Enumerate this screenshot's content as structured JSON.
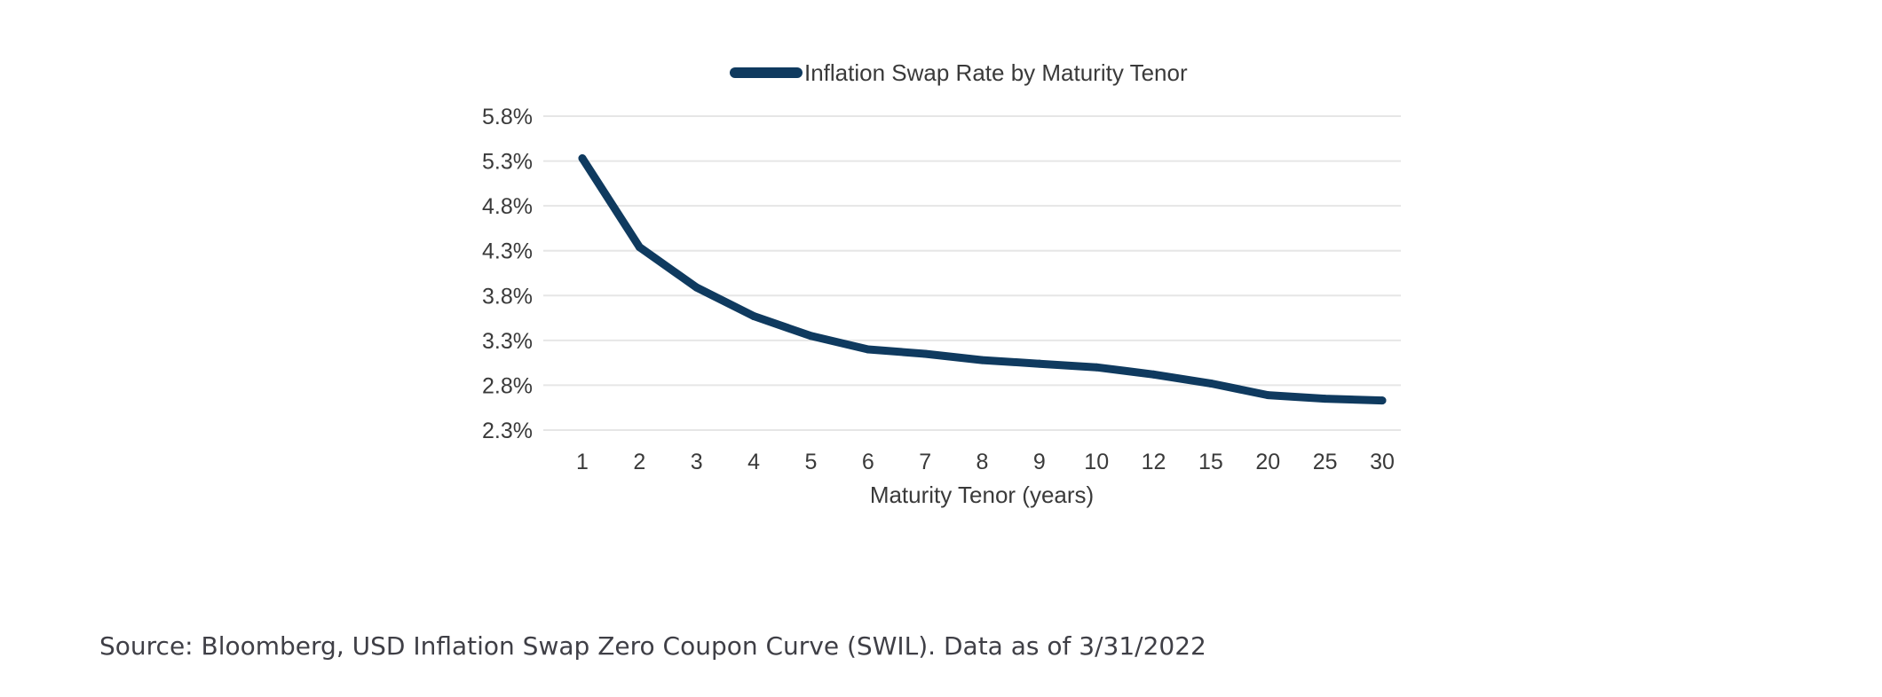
{
  "source_note": "Source: Bloomberg, USD Inflation Swap Zero Coupon Curve (SWIL). Data as of 3/31/2022",
  "chart_data": {
    "type": "line",
    "title": "",
    "xlabel": "Maturity Tenor (years)",
    "ylabel": "",
    "categories": [
      "1",
      "2",
      "3",
      "4",
      "5",
      "6",
      "7",
      "8",
      "9",
      "10",
      "12",
      "15",
      "20",
      "25",
      "30"
    ],
    "series": [
      {
        "name": "Inflation Swap Rate by Maturity Tenor",
        "color": "#0f3a5f",
        "values": [
          5.33,
          4.34,
          3.89,
          3.57,
          3.35,
          3.2,
          3.15,
          3.08,
          3.04,
          3.0,
          2.92,
          2.82,
          2.69,
          2.65,
          2.63
        ]
      }
    ],
    "yticks": [
      "5.8%",
      "5.3%",
      "4.8%",
      "4.3%",
      "3.8%",
      "3.3%",
      "2.8%",
      "2.3%"
    ],
    "ylim": [
      2.3,
      5.8
    ],
    "grid": true,
    "legend_position": "top"
  }
}
